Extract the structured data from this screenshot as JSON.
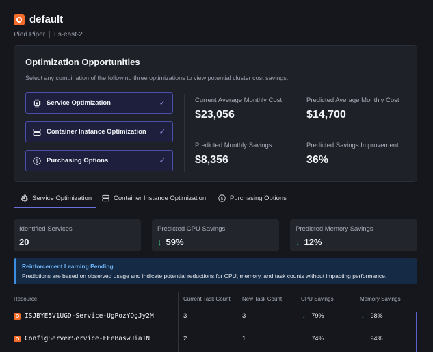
{
  "header": {
    "title": "default",
    "org": "Pied Piper",
    "region": "us-east-2"
  },
  "optimization": {
    "title": "Optimization Opportunities",
    "subtitle": "Select any combination of the following three optimizations to view potential cluster cost savings.",
    "options": [
      {
        "label": "Service Optimization",
        "icon": "chip-icon",
        "selected": true
      },
      {
        "label": "Container Instance Optimization",
        "icon": "server-icon",
        "selected": true
      },
      {
        "label": "Purchasing Options",
        "icon": "dollar-icon",
        "selected": true
      }
    ],
    "check_glyph": "✓",
    "stats": {
      "current_cost": {
        "label": "Current Average Monthly Cost",
        "value": "$23,056"
      },
      "predicted_cost": {
        "label": "Predicted Average Monthly Cost",
        "value": "$14,700"
      },
      "predicted_savings": {
        "label": "Predicted Monthly Savings",
        "value": "$8,356"
      },
      "savings_improvement": {
        "label": "Predicted Savings Improvement",
        "value": "36%"
      }
    }
  },
  "tabs": [
    {
      "label": "Service Optimization",
      "icon": "chip-icon",
      "active": true
    },
    {
      "label": "Container Instance Optimization",
      "icon": "server-icon",
      "active": false
    },
    {
      "label": "Purchasing Options",
      "icon": "dollar-icon",
      "active": false
    }
  ],
  "summary": {
    "identified_services": {
      "label": "Identified Services",
      "value": "20"
    },
    "cpu_savings": {
      "label": "Predicted CPU Savings",
      "value": "59%"
    },
    "memory_savings": {
      "label": "Predicted Memory Savings",
      "value": "12%"
    },
    "arrow": "↓"
  },
  "banner": {
    "title": "Reinforcement Learning Pending",
    "text": "Predictions are based on observed usage and indicate potential reductions for CPU, memory, and task counts without impacting performance."
  },
  "table": {
    "columns": [
      "Resource",
      "Current Task Count",
      "New Task Count",
      "CPU Savings",
      "Memory Savings"
    ],
    "rows": [
      {
        "resource": "ISJBYE5V1UGD-Service-UgPozYOgJy2M",
        "current": "3",
        "new": "3",
        "cpu": "79%",
        "memory": "98%"
      },
      {
        "resource": "ConfigServerService-FFeBaswUia1N",
        "current": "2",
        "new": "1",
        "cpu": "74%",
        "memory": "94%"
      }
    ]
  },
  "colors": {
    "accent": "#6b70e0",
    "brand": "#f46b2a",
    "positive": "#3fbf7f",
    "info": "#3d8de0"
  }
}
